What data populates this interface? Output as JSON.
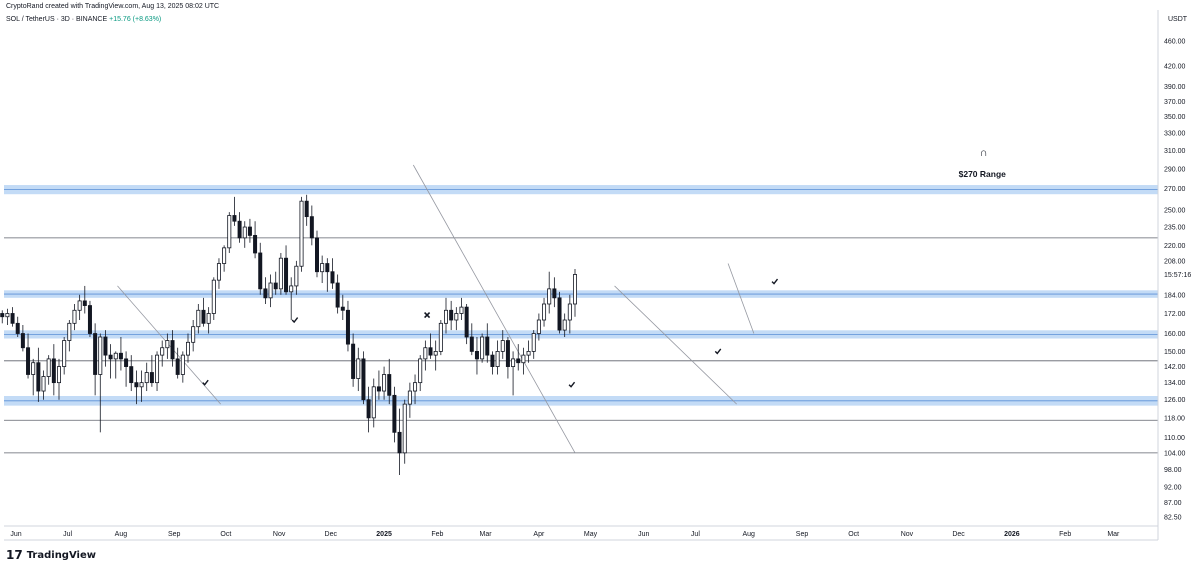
{
  "header": {
    "credit": "CryptoRand created with TradingView.com, Aug 13, 2025 08:02 UTC",
    "symbol": "SOL / TetherUS · 3D · BINANCE",
    "change": "+15.76 (+8.63%)"
  },
  "branding": {
    "logo_mark": "17",
    "logo_text": "TradingView"
  },
  "annotation": {
    "text": "$270 Range",
    "icon": "arch-magnet-icon"
  },
  "colors": {
    "candle": "#131722",
    "zone_fill": "#bcd7f5",
    "zone_line": "#5b8fd6",
    "level_line": "#5d606b",
    "trendline": "#9598a1",
    "grid": "#e0e3eb"
  },
  "chart_data": {
    "type": "candlestick",
    "symbol": "SOL / TetherUS",
    "interval": "3D",
    "exchange": "BINANCE",
    "price_scale": "log",
    "ylabel": "USDT",
    "ylim": [
      82.5,
      480
    ],
    "price_ticks": [
      "460.00",
      "420.00",
      "390.00",
      "370.00",
      "350.00",
      "330.00",
      "310.00",
      "290.00",
      "270.00",
      "250.00",
      "235.00",
      "220.00",
      "208.00",
      "184.00",
      "172.00",
      "160.00",
      "150.00",
      "142.00",
      "134.00",
      "126.00",
      "118.00",
      "110.00",
      "104.00",
      "98.00",
      "92.00",
      "87.00",
      "82.50"
    ],
    "current_time_label": "15:57:16",
    "x_ticks": [
      "Jun",
      "Jul",
      "Aug",
      "Sep",
      "Oct",
      "Nov",
      "Dec",
      "2025",
      "Feb",
      "Mar",
      "Apr",
      "May",
      "Jun",
      "Jul",
      "Aug",
      "Sep",
      "Oct",
      "Nov",
      "Dec",
      "2026",
      "Feb",
      "Mar"
    ],
    "x_tick_dates": [
      "2024-06-01",
      "2024-07-01",
      "2024-08-01",
      "2024-09-01",
      "2024-10-01",
      "2024-11-01",
      "2024-12-01",
      "2025-01-01",
      "2025-02-01",
      "2025-03-01",
      "2025-04-01",
      "2025-05-01",
      "2025-06-01",
      "2025-07-01",
      "2025-08-01",
      "2025-09-01",
      "2025-10-01",
      "2025-11-01",
      "2025-12-01",
      "2026-01-01",
      "2026-02-01",
      "2026-03-01"
    ],
    "candles_start": "2024-05-24",
    "candle_interval_days": 3,
    "candles": [
      [
        172,
        174,
        166,
        170
      ],
      [
        170,
        175,
        165,
        172
      ],
      [
        172,
        176,
        164,
        166
      ],
      [
        166,
        170,
        158,
        160
      ],
      [
        160,
        165,
        150,
        152
      ],
      [
        152,
        160,
        136,
        138
      ],
      [
        138,
        146,
        128,
        144
      ],
      [
        144,
        152,
        125,
        130
      ],
      [
        130,
        140,
        126,
        137
      ],
      [
        137,
        148,
        133,
        146
      ],
      [
        146,
        154,
        128,
        134
      ],
      [
        134,
        146,
        126,
        142
      ],
      [
        142,
        158,
        138,
        156
      ],
      [
        156,
        168,
        150,
        166
      ],
      [
        166,
        178,
        162,
        174
      ],
      [
        174,
        184,
        168,
        180
      ],
      [
        180,
        190,
        172,
        177
      ],
      [
        177,
        180,
        158,
        160
      ],
      [
        160,
        166,
        128,
        138
      ],
      [
        138,
        160,
        112,
        158
      ],
      [
        158,
        162,
        142,
        148
      ],
      [
        148,
        154,
        136,
        146
      ],
      [
        146,
        150,
        136,
        149
      ],
      [
        149,
        158,
        140,
        146
      ],
      [
        146,
        150,
        132,
        142
      ],
      [
        142,
        148,
        130,
        134
      ],
      [
        134,
        140,
        124,
        132
      ],
      [
        132,
        140,
        125,
        134
      ],
      [
        134,
        144,
        130,
        139
      ],
      [
        139,
        148,
        132,
        134
      ],
      [
        134,
        150,
        130,
        148
      ],
      [
        148,
        156,
        142,
        152
      ],
      [
        152,
        160,
        146,
        156
      ],
      [
        156,
        162,
        142,
        146
      ],
      [
        146,
        152,
        136,
        138
      ],
      [
        138,
        150,
        134,
        148
      ],
      [
        148,
        160,
        144,
        155
      ],
      [
        155,
        168,
        150,
        164
      ],
      [
        164,
        178,
        160,
        174
      ],
      [
        174,
        182,
        164,
        166
      ],
      [
        166,
        176,
        160,
        172
      ],
      [
        172,
        196,
        168,
        194
      ],
      [
        194,
        210,
        188,
        206
      ],
      [
        206,
        220,
        200,
        218
      ],
      [
        218,
        248,
        214,
        245
      ],
      [
        245,
        262,
        236,
        240
      ],
      [
        240,
        248,
        222,
        226
      ],
      [
        226,
        240,
        218,
        235
      ],
      [
        235,
        242,
        222,
        228
      ],
      [
        228,
        240,
        210,
        214
      ],
      [
        214,
        222,
        184,
        188
      ],
      [
        188,
        196,
        178,
        182
      ],
      [
        182,
        198,
        176,
        192
      ],
      [
        192,
        200,
        184,
        188
      ],
      [
        188,
        214,
        184,
        210
      ],
      [
        210,
        220,
        184,
        186
      ],
      [
        186,
        196,
        168,
        190
      ],
      [
        190,
        208,
        184,
        204
      ],
      [
        204,
        262,
        200,
        258
      ],
      [
        258,
        264,
        236,
        244
      ],
      [
        244,
        254,
        220,
        226
      ],
      [
        226,
        232,
        196,
        200
      ],
      [
        200,
        212,
        192,
        206
      ],
      [
        206,
        210,
        186,
        200
      ],
      [
        200,
        210,
        188,
        192
      ],
      [
        192,
        198,
        172,
        176
      ],
      [
        176,
        184,
        168,
        174
      ],
      [
        174,
        180,
        150,
        154
      ],
      [
        154,
        160,
        132,
        136
      ],
      [
        136,
        152,
        130,
        146
      ],
      [
        146,
        150,
        124,
        126
      ],
      [
        126,
        132,
        112,
        118
      ],
      [
        118,
        136,
        114,
        132
      ],
      [
        132,
        140,
        126,
        130
      ],
      [
        130,
        142,
        126,
        138
      ],
      [
        138,
        146,
        124,
        128
      ],
      [
        128,
        132,
        108,
        112
      ],
      [
        112,
        122,
        96,
        104
      ],
      [
        104,
        126,
        100,
        124
      ],
      [
        124,
        134,
        118,
        130
      ],
      [
        130,
        138,
        124,
        134
      ],
      [
        134,
        148,
        130,
        146
      ],
      [
        146,
        156,
        140,
        152
      ],
      [
        152,
        160,
        146,
        148
      ],
      [
        148,
        156,
        140,
        150
      ],
      [
        150,
        168,
        148,
        166
      ],
      [
        166,
        182,
        160,
        174
      ],
      [
        174,
        180,
        162,
        168
      ],
      [
        168,
        176,
        162,
        172
      ],
      [
        172,
        182,
        168,
        176
      ],
      [
        176,
        178,
        154,
        158
      ],
      [
        158,
        166,
        148,
        150
      ],
      [
        150,
        158,
        138,
        146
      ],
      [
        146,
        160,
        144,
        158
      ],
      [
        158,
        166,
        144,
        148
      ],
      [
        148,
        150,
        138,
        142
      ],
      [
        142,
        156,
        138,
        150
      ],
      [
        150,
        162,
        146,
        156
      ],
      [
        156,
        158,
        136,
        142
      ],
      [
        142,
        150,
        128,
        146
      ],
      [
        146,
        154,
        140,
        144
      ],
      [
        144,
        152,
        138,
        148
      ],
      [
        148,
        156,
        144,
        150
      ],
      [
        150,
        162,
        146,
        160
      ],
      [
        160,
        172,
        156,
        168
      ],
      [
        168,
        182,
        164,
        178
      ],
      [
        178,
        200,
        172,
        188
      ],
      [
        188,
        196,
        176,
        182
      ],
      [
        182,
        186,
        160,
        162
      ],
      [
        162,
        172,
        158,
        168
      ],
      [
        168,
        184,
        160,
        178
      ],
      [
        178,
        202,
        170,
        198
      ]
    ],
    "horizontal_levels": [
      {
        "kind": "zone",
        "low": 266,
        "high": 272
      },
      {
        "kind": "line",
        "price": 226
      },
      {
        "kind": "zone",
        "low": 183,
        "high": 186
      },
      {
        "kind": "zone",
        "low": 158,
        "high": 161
      },
      {
        "kind": "line",
        "price": 145
      },
      {
        "kind": "zone",
        "low": 124,
        "high": 127
      },
      {
        "kind": "line",
        "price": 117
      },
      {
        "kind": "line",
        "price": 104
      }
    ],
    "trendlines": [
      {
        "from": [
          "2024-07-30",
          190
        ],
        "to": [
          "2024-09-28",
          124
        ]
      },
      {
        "from": [
          "2025-01-18",
          294
        ],
        "to": [
          "2025-04-22",
          104
        ]
      },
      {
        "from": [
          "2025-05-15",
          190
        ],
        "to": [
          "2025-07-25",
          124
        ]
      },
      {
        "from": [
          "2025-07-20",
          206
        ],
        "to": [
          "2025-08-04",
          160
        ]
      }
    ],
    "markers": [
      {
        "type": "check",
        "date": "2024-09-19",
        "price": 134
      },
      {
        "type": "check",
        "date": "2024-11-10",
        "price": 168
      },
      {
        "type": "cross",
        "date": "2025-01-26",
        "price": 171
      },
      {
        "type": "check",
        "date": "2025-04-20",
        "price": 133
      },
      {
        "type": "check",
        "date": "2025-07-14",
        "price": 150
      },
      {
        "type": "check",
        "date": "2025-08-16",
        "price": 193
      }
    ],
    "annotation_anchor": {
      "date": "2025-12-15",
      "price": 280
    }
  }
}
